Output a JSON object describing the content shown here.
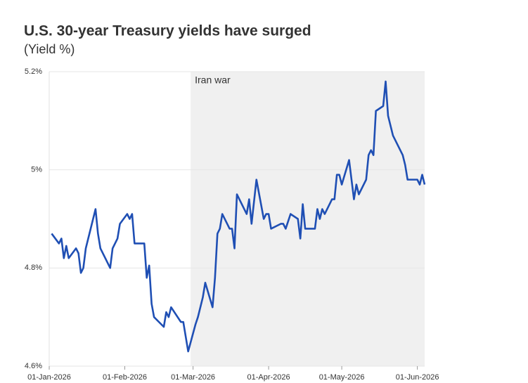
{
  "chart_data": {
    "type": "line",
    "title": "U.S. 30-year Treasury yields have surged",
    "subtitle": "(Yield %)",
    "x": [
      "2026-01-02",
      "2026-01-05",
      "2026-01-06",
      "2026-01-07",
      "2026-01-08",
      "2026-01-09",
      "2026-01-12",
      "2026-01-13",
      "2026-01-14",
      "2026-01-15",
      "2026-01-16",
      "2026-01-20",
      "2026-01-21",
      "2026-01-22",
      "2026-01-26",
      "2026-01-27",
      "2026-01-29",
      "2026-01-30",
      "2026-02-02",
      "2026-02-03",
      "2026-02-04",
      "2026-02-05",
      "2026-02-09",
      "2026-02-10",
      "2026-02-11",
      "2026-02-12",
      "2026-02-13",
      "2026-02-17",
      "2026-02-18",
      "2026-02-19",
      "2026-02-20",
      "2026-02-24",
      "2026-02-25",
      "2026-02-27",
      "2026-03-02",
      "2026-03-03",
      "2026-03-05",
      "2026-03-06",
      "2026-03-09",
      "2026-03-10",
      "2026-03-11",
      "2026-03-12",
      "2026-03-13",
      "2026-03-16",
      "2026-03-17",
      "2026-03-18",
      "2026-03-19",
      "2026-03-23",
      "2026-03-24",
      "2026-03-25",
      "2026-03-27",
      "2026-03-30",
      "2026-03-31",
      "2026-04-01",
      "2026-04-02",
      "2026-04-06",
      "2026-04-07",
      "2026-04-08",
      "2026-04-10",
      "2026-04-13",
      "2026-04-14",
      "2026-04-15",
      "2026-04-16",
      "2026-04-20",
      "2026-04-21",
      "2026-04-22",
      "2026-04-23",
      "2026-04-24",
      "2026-04-27",
      "2026-04-28",
      "2026-04-29",
      "2026-04-30",
      "2026-05-01",
      "2026-05-04",
      "2026-05-05",
      "2026-05-06",
      "2026-05-07",
      "2026-05-08",
      "2026-05-11",
      "2026-05-12",
      "2026-05-13",
      "2026-05-14",
      "2026-05-15",
      "2026-05-18",
      "2026-05-19",
      "2026-05-20",
      "2026-05-22",
      "2026-05-26",
      "2026-05-27",
      "2026-05-28",
      "2026-06-01",
      "2026-06-02",
      "2026-06-03",
      "2026-06-04"
    ],
    "series": [
      {
        "color": "#1f4fb4",
        "values": [
          4.87,
          4.85,
          4.86,
          4.82,
          4.845,
          4.82,
          4.84,
          4.83,
          4.79,
          4.8,
          4.84,
          4.92,
          4.87,
          4.84,
          4.8,
          4.84,
          4.86,
          4.89,
          4.91,
          4.9,
          4.91,
          4.85,
          4.85,
          4.78,
          4.805,
          4.727,
          4.7,
          4.68,
          4.71,
          4.7,
          4.72,
          4.69,
          4.69,
          4.63,
          4.685,
          4.7,
          4.74,
          4.77,
          4.72,
          4.78,
          4.87,
          4.88,
          4.91,
          4.88,
          4.88,
          4.84,
          4.95,
          4.91,
          4.94,
          4.89,
          4.98,
          4.9,
          4.91,
          4.91,
          4.88,
          4.89,
          4.89,
          4.88,
          4.91,
          4.9,
          4.86,
          4.93,
          4.88,
          4.88,
          4.92,
          4.9,
          4.92,
          4.91,
          4.94,
          4.94,
          4.99,
          4.99,
          4.97,
          5.02,
          4.98,
          4.94,
          4.97,
          4.95,
          4.98,
          5.03,
          5.04,
          5.03,
          5.12,
          5.13,
          5.18,
          5.11,
          5.07,
          5.03,
          5.01,
          4.98,
          4.98,
          4.97,
          4.99,
          4.97
        ]
      }
    ],
    "xlim": [
      "2026-01-01",
      "2026-06-04"
    ],
    "xticks": [
      {
        "value": "2026-01-01",
        "label": "01-Jan-2026"
      },
      {
        "value": "2026-02-01",
        "label": "01-Feb-2026"
      },
      {
        "value": "2026-03-01",
        "label": "01-Mar-2026"
      },
      {
        "value": "2026-04-01",
        "label": "01-Apr-2026"
      },
      {
        "value": "2026-05-01",
        "label": "01-May-2026"
      },
      {
        "value": "2026-06-01",
        "label": "01-Jun-2026"
      }
    ],
    "ylim": [
      4.6,
      5.2
    ],
    "yticks": [
      {
        "value": 4.6,
        "label": "4.6%"
      },
      {
        "value": 4.8,
        "label": "4.8%"
      },
      {
        "value": 5,
        "label": "5%"
      },
      {
        "value": 5.2,
        "label": "5.2%"
      }
    ],
    "grid": true,
    "annotations": [
      {
        "text": "Iran war",
        "x": "2026-02-28",
        "shade_color": "#f0f0f0"
      }
    ]
  }
}
